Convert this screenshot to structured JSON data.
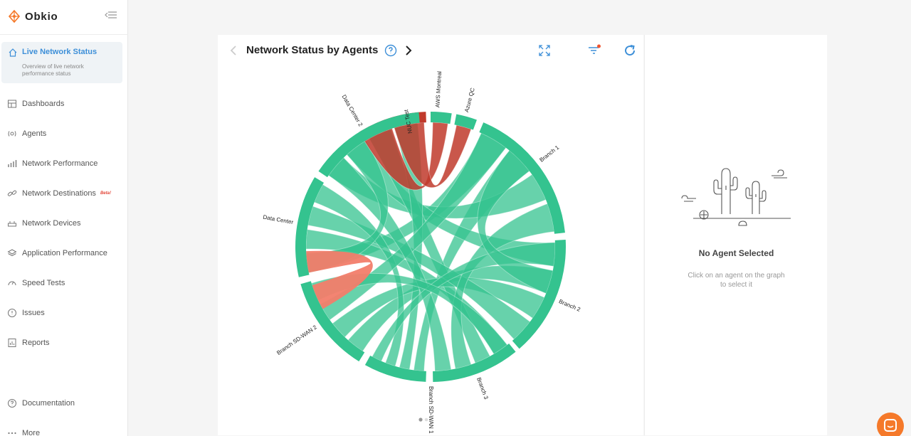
{
  "app": {
    "name": "Obkio"
  },
  "sidebar": {
    "active": {
      "label": "Live Network Status",
      "description": "Overview of live network performance status"
    },
    "items": [
      {
        "label": "Dashboards",
        "icon": "dashboard-icon"
      },
      {
        "label": "Agents",
        "icon": "agent-icon"
      },
      {
        "label": "Network Performance",
        "icon": "bar-chart-icon"
      },
      {
        "label": "Network Destinations",
        "icon": "link-icon",
        "badge": "Beta!"
      },
      {
        "label": "Network Devices",
        "icon": "router-icon"
      },
      {
        "label": "Application Performance",
        "icon": "layers-icon"
      },
      {
        "label": "Speed Tests",
        "icon": "gauge-icon"
      },
      {
        "label": "Issues",
        "icon": "alert-circle-icon"
      },
      {
        "label": "Reports",
        "icon": "report-icon"
      }
    ],
    "footer": [
      {
        "label": "Documentation",
        "icon": "question-circle-icon"
      },
      {
        "label": "More",
        "icon": "more-icon"
      }
    ]
  },
  "main": {
    "title": "Network Status by Agents",
    "colors": {
      "healthy": "#34c38f",
      "critical": "#c0392b",
      "warning": "#f27d6a",
      "accent": "#3d8fd8"
    }
  },
  "chart_data": {
    "type": "chord",
    "agents": [
      {
        "name": "NUC Test",
        "status": "critical"
      },
      {
        "name": "AWS Montreal",
        "status": "healthy"
      },
      {
        "name": "Azure QC",
        "status": "healthy"
      },
      {
        "name": "Branch 1",
        "status": "healthy"
      },
      {
        "name": "Branch 2",
        "status": "healthy"
      },
      {
        "name": "Branch 3",
        "status": "healthy"
      },
      {
        "name": "Branch SD-WAN 1",
        "status": "healthy"
      },
      {
        "name": "Branch SD-WAN 2",
        "status": "healthy"
      },
      {
        "name": "Data Center",
        "status": "healthy"
      },
      {
        "name": "Data Center 2",
        "status": "healthy"
      }
    ]
  },
  "panel": {
    "title": "No Agent Selected",
    "description": "Click on an agent on the graph to select it"
  }
}
